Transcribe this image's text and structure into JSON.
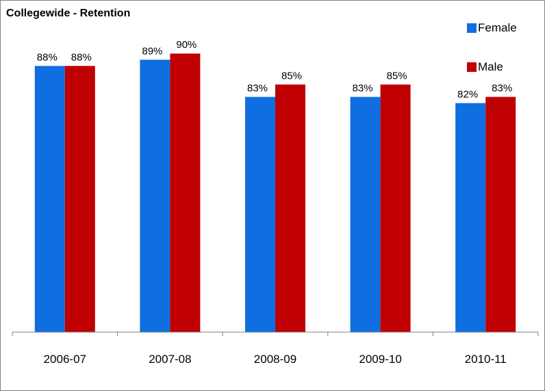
{
  "chart_data": {
    "type": "bar",
    "title": "Collegewide - Retention",
    "xlabel": "",
    "ylabel": "",
    "categories": [
      "2006-07",
      "2007-08",
      "2008-09",
      "2009-10",
      "2010-11"
    ],
    "series": [
      {
        "name": "Female",
        "color": "#0f6ee0",
        "values": [
          88,
          89,
          83,
          83,
          82
        ],
        "labels": [
          "88%",
          "89%",
          "83%",
          "83%",
          "82%"
        ]
      },
      {
        "name": "Male",
        "color": "#c00000",
        "values": [
          88,
          90,
          85,
          85,
          83
        ],
        "labels": [
          "88%",
          "90%",
          "85%",
          "85%",
          "83%"
        ]
      }
    ],
    "ylim": [
      45,
      96
    ],
    "grid": false,
    "legend_position": "top-right"
  }
}
